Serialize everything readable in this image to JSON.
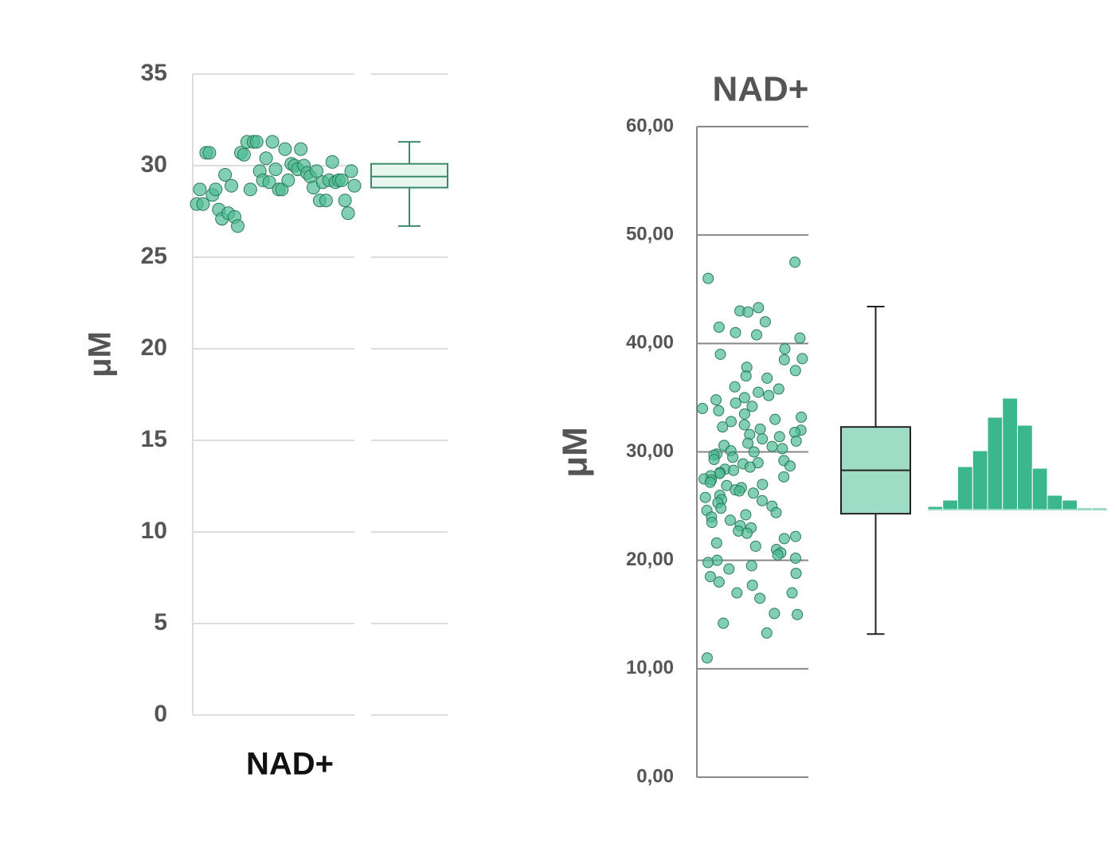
{
  "chart_data": [
    {
      "type": "strip",
      "x_label": "NAD+",
      "y_label": "μM",
      "ylim": [
        0,
        35
      ],
      "yticks": [
        0,
        5,
        10,
        15,
        20,
        25,
        30,
        35
      ],
      "grid": true,
      "color": "#4dbb93",
      "values": [
        27.9,
        28.7,
        27.9,
        30.7,
        30.7,
        28.4,
        28.7,
        27.6,
        27.1,
        29.5,
        27.4,
        28.9,
        27.2,
        26.7,
        30.7,
        30.6,
        31.3,
        28.7,
        31.3,
        31.3,
        29.7,
        29.2,
        30.4,
        29.1,
        31.3,
        29.8,
        28.7,
        28.7,
        30.9,
        29.2,
        30.1,
        30.0,
        29.8,
        30.9,
        30.0,
        29.6,
        29.4,
        28.8,
        29.7,
        28.1,
        29.1,
        28.1,
        29.2,
        30.2,
        29.1,
        29.2,
        29.2,
        28.1,
        27.4,
        29.7,
        28.9
      ],
      "box": {
        "whisker_low": 26.7,
        "q1": 28.8,
        "median": 29.4,
        "q3": 30.1,
        "whisker_high": 31.3,
        "color": "#e8f6f0"
      }
    },
    {
      "type": "strip",
      "title": "NAD+",
      "y_label": "μM",
      "ylim": [
        0,
        60
      ],
      "yticks": [
        {
          "value": 0,
          "label": "0,00"
        },
        {
          "value": 10,
          "label": "10,00"
        },
        {
          "value": 20,
          "label": "20,00"
        },
        {
          "value": 30,
          "label": "30,00"
        },
        {
          "value": 40,
          "label": "40,00"
        },
        {
          "value": 50,
          "label": "50,00"
        },
        {
          "value": 60,
          "label": "60,00"
        }
      ],
      "grid": true,
      "color": "#4dbb93",
      "values": [
        47.5,
        46.0,
        43.3,
        43.0,
        42.9,
        42.0,
        41.5,
        41.0,
        40.8,
        40.5,
        39.5,
        39.0,
        38.6,
        38.5,
        37.8,
        37.5,
        37.0,
        36.8,
        36.0,
        35.8,
        35.5,
        35.2,
        35.0,
        34.8,
        34.5,
        34.2,
        34.0,
        33.8,
        33.5,
        33.2,
        33.0,
        32.8,
        32.5,
        32.3,
        32.1,
        32.0,
        31.8,
        31.6,
        31.4,
        31.2,
        31.0,
        30.8,
        30.6,
        30.5,
        30.3,
        30.1,
        30.0,
        29.8,
        29.7,
        29.5,
        29.3,
        29.2,
        29.0,
        28.9,
        28.7,
        28.6,
        28.4,
        28.3,
        28.1,
        28.0,
        27.8,
        27.7,
        27.5,
        27.4,
        27.2,
        27.0,
        26.9,
        26.7,
        26.5,
        26.4,
        26.2,
        26.0,
        25.8,
        25.6,
        25.5,
        25.3,
        25.0,
        24.8,
        24.6,
        24.4,
        24.2,
        24.0,
        23.7,
        23.5,
        23.2,
        23.0,
        22.7,
        22.5,
        22.2,
        22.0,
        21.6,
        21.3,
        21.0,
        20.7,
        20.5,
        20.2,
        20.0,
        19.8,
        19.5,
        19.2,
        18.8,
        18.5,
        18.0,
        17.7,
        17.0,
        17.0,
        16.5,
        15.1,
        15.0,
        14.2,
        13.3,
        11.0
      ],
      "box": {
        "whisker_low": 13.2,
        "q1": 24.3,
        "median": 28.3,
        "q3": 32.3,
        "whisker_high": 43.4,
        "color": "#9fdcc5"
      },
      "histogram": {
        "bins": [
          10,
          13,
          16,
          19,
          22,
          25,
          28,
          31,
          34,
          37,
          40,
          43,
          46
        ],
        "counts": [
          2,
          6,
          27,
          37,
          58,
          70,
          53,
          26,
          9,
          6,
          1,
          1
        ],
        "color": "#3ab78c"
      }
    }
  ]
}
